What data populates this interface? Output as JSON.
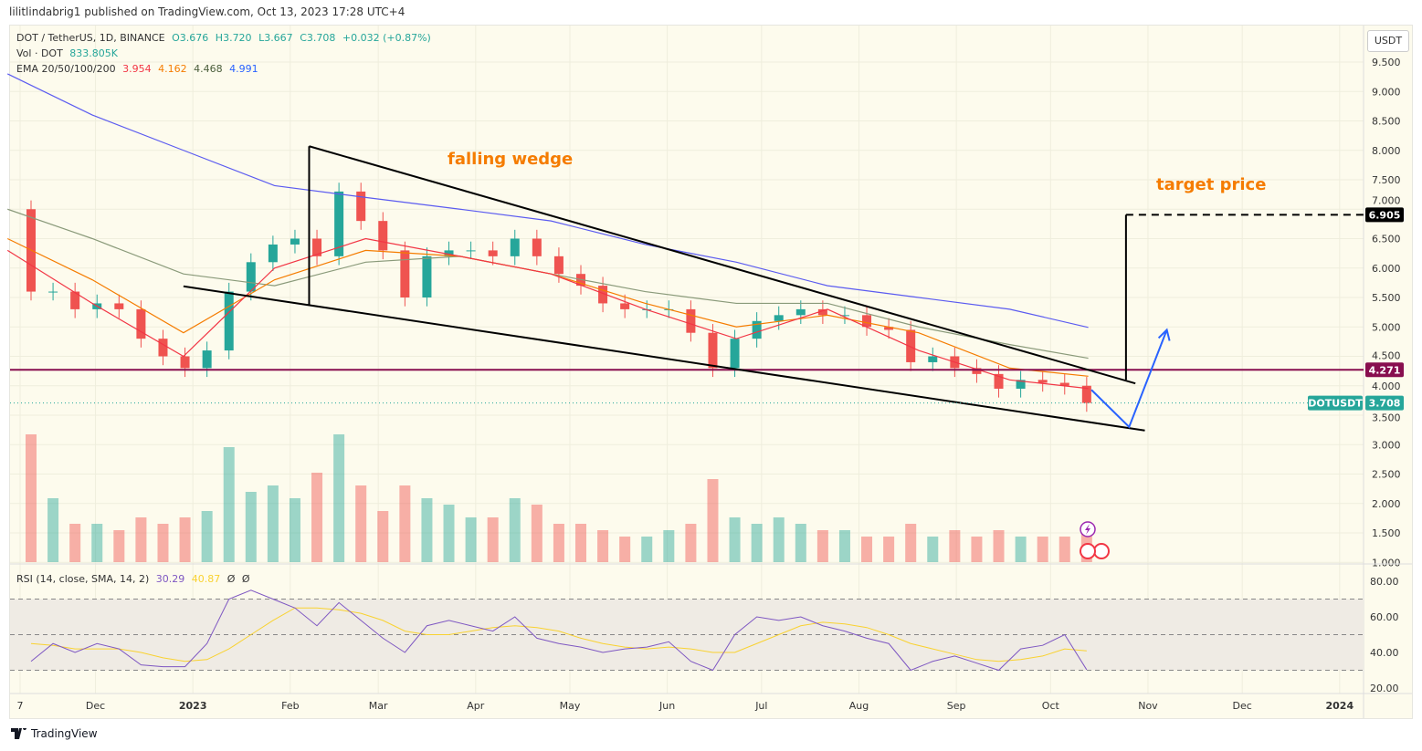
{
  "published": "lilitlindabrig1 published on TradingView.com, Oct 13, 2023 17:28 UTC+4",
  "legend": {
    "symbol": "DOT / TetherUS, 1D, BINANCE",
    "o": "O3.676",
    "h": "H3.720",
    "l": "L3.667",
    "c": "C3.708",
    "change": "+0.032 (+0.87%)",
    "vol_label": "Vol · DOT",
    "vol_value": "833.805K",
    "ema_label": "EMA 20/50/100/200",
    "ema20": "3.954",
    "ema50": "4.162",
    "ema100": "4.468",
    "ema200": "4.991",
    "rsi_label": "RSI (14, close, SMA, 14, 2)",
    "rsi_value": "30.29",
    "rsi_sma_value": "40.87",
    "rsi_n1": "Ø",
    "rsi_n2": "Ø"
  },
  "currency": "USDT",
  "annotations": {
    "wedge": "falling wedge",
    "target": "target price"
  },
  "tags": {
    "target": "6.905",
    "level": "4.271",
    "symbol": "DOTUSDT",
    "last": "3.708"
  },
  "footer_logo": "TradingView",
  "colors": {
    "up": "#26a69a",
    "down": "#ef5350",
    "ema20": "#f23645",
    "ema50": "#f57c00",
    "ema100": "#8a9a7a",
    "ema200": "#5b5bf0",
    "rsi": "#7e57c2",
    "rsi_sma": "#f9d230",
    "level": "#880e4f",
    "background": "#fdfbed"
  },
  "chart_data": [
    {
      "type": "candlestick",
      "price_axis": {
        "ticks": [
          "9.500",
          "9.000",
          "8.500",
          "8.000",
          "7.500",
          "7.000",
          "6.500",
          "6.000",
          "5.500",
          "5.000",
          "4.500",
          "4.000",
          "3.500",
          "3.000",
          "2.500",
          "2.000",
          "1.500",
          "1.000"
        ]
      },
      "time_axis": {
        "ticks": [
          [
            "2022-11-07",
            "7"
          ],
          [
            "2022-12-01",
            "Dec"
          ],
          [
            "2023-01-01",
            "2023"
          ],
          [
            "2023-02-01",
            "Feb"
          ],
          [
            "2023-03-01",
            "Mar"
          ],
          [
            "2023-04-01",
            "Apr"
          ],
          [
            "2023-05-01",
            "May"
          ],
          [
            "2023-06-01",
            "Jun"
          ],
          [
            "2023-07-01",
            "Jul"
          ],
          [
            "2023-08-01",
            "Aug"
          ],
          [
            "2023-09-01",
            "Sep"
          ],
          [
            "2023-10-01",
            "Oct"
          ],
          [
            "2023-11-01",
            "Nov"
          ],
          [
            "2023-12-01",
            "Dec"
          ],
          [
            "2024-01-01",
            "2024"
          ]
        ]
      },
      "weekly_closes": [
        [
          "2022-11-07",
          5.6
        ],
        [
          "2022-11-14",
          5.6
        ],
        [
          "2022-11-21",
          5.3
        ],
        [
          "2022-11-28",
          5.4
        ],
        [
          "2022-12-05",
          5.3
        ],
        [
          "2022-12-12",
          4.8
        ],
        [
          "2022-12-19",
          4.5
        ],
        [
          "2022-12-26",
          4.3
        ],
        [
          "2023-01-02",
          4.6
        ],
        [
          "2023-01-09",
          5.6
        ],
        [
          "2023-01-16",
          6.1
        ],
        [
          "2023-01-23",
          6.4
        ],
        [
          "2023-01-30",
          6.5
        ],
        [
          "2023-02-06",
          6.2
        ],
        [
          "2023-02-13",
          7.3
        ],
        [
          "2023-02-20",
          6.8
        ],
        [
          "2023-02-27",
          6.3
        ],
        [
          "2023-03-06",
          5.5
        ],
        [
          "2023-03-13",
          6.2
        ],
        [
          "2023-03-20",
          6.3
        ],
        [
          "2023-03-27",
          6.3
        ],
        [
          "2023-04-03",
          6.2
        ],
        [
          "2023-04-10",
          6.5
        ],
        [
          "2023-04-17",
          6.2
        ],
        [
          "2023-04-24",
          5.9
        ],
        [
          "2023-05-01",
          5.7
        ],
        [
          "2023-05-08",
          5.4
        ],
        [
          "2023-05-15",
          5.3
        ],
        [
          "2023-05-22",
          5.3
        ],
        [
          "2023-05-29",
          5.3
        ],
        [
          "2023-06-05",
          4.9
        ],
        [
          "2023-06-12",
          4.3
        ],
        [
          "2023-06-19",
          4.8
        ],
        [
          "2023-06-26",
          5.1
        ],
        [
          "2023-07-03",
          5.2
        ],
        [
          "2023-07-10",
          5.3
        ],
        [
          "2023-07-17",
          5.2
        ],
        [
          "2023-07-24",
          5.2
        ],
        [
          "2023-07-31",
          5.0
        ],
        [
          "2023-08-07",
          4.95
        ],
        [
          "2023-08-14",
          4.4
        ],
        [
          "2023-08-21",
          4.5
        ],
        [
          "2023-08-28",
          4.3
        ],
        [
          "2023-09-04",
          4.2
        ],
        [
          "2023-09-11",
          3.95
        ],
        [
          "2023-09-18",
          4.1
        ],
        [
          "2023-09-25",
          4.05
        ],
        [
          "2023-10-02",
          4.0
        ],
        [
          "2023-10-09",
          3.708
        ]
      ],
      "first_open": 7.0,
      "volume_relative": [
        1.0,
        0.5,
        0.3,
        0.3,
        0.25,
        0.35,
        0.3,
        0.35,
        0.4,
        0.9,
        0.55,
        0.6,
        0.5,
        0.7,
        1.0,
        0.6,
        0.4,
        0.6,
        0.5,
        0.45,
        0.35,
        0.35,
        0.5,
        0.45,
        0.3,
        0.3,
        0.25,
        0.2,
        0.2,
        0.25,
        0.3,
        0.65,
        0.35,
        0.3,
        0.35,
        0.3,
        0.25,
        0.25,
        0.2,
        0.2,
        0.3,
        0.2,
        0.25,
        0.2,
        0.25,
        0.2,
        0.2,
        0.2,
        0.25
      ],
      "ema": {
        "ema20": [
          [
            "2022-11-03",
            6.3
          ],
          [
            "2022-11-30",
            5.4
          ],
          [
            "2022-12-29",
            4.5
          ],
          [
            "2023-01-27",
            6.0
          ],
          [
            "2023-02-25",
            6.5
          ],
          [
            "2023-03-27",
            6.2
          ],
          [
            "2023-04-25",
            5.9
          ],
          [
            "2023-05-25",
            5.3
          ],
          [
            "2023-06-23",
            4.8
          ],
          [
            "2023-07-22",
            5.3
          ],
          [
            "2023-08-20",
            4.6
          ],
          [
            "2023-09-18",
            4.1
          ],
          [
            "2023-10-13",
            3.954
          ]
        ],
        "ema50": [
          [
            "2022-11-03",
            6.5
          ],
          [
            "2022-11-30",
            5.8
          ],
          [
            "2022-12-29",
            4.9
          ],
          [
            "2023-01-27",
            5.8
          ],
          [
            "2023-02-25",
            6.3
          ],
          [
            "2023-03-27",
            6.2
          ],
          [
            "2023-04-25",
            5.9
          ],
          [
            "2023-05-25",
            5.4
          ],
          [
            "2023-06-23",
            5.0
          ],
          [
            "2023-07-22",
            5.2
          ],
          [
            "2023-08-20",
            4.9
          ],
          [
            "2023-09-18",
            4.3
          ],
          [
            "2023-10-13",
            4.162
          ]
        ],
        "ema100": [
          [
            "2022-11-03",
            7.0
          ],
          [
            "2022-11-30",
            6.5
          ],
          [
            "2022-12-29",
            5.9
          ],
          [
            "2023-01-27",
            5.7
          ],
          [
            "2023-02-25",
            6.1
          ],
          [
            "2023-03-27",
            6.2
          ],
          [
            "2023-04-25",
            5.9
          ],
          [
            "2023-05-25",
            5.6
          ],
          [
            "2023-06-23",
            5.4
          ],
          [
            "2023-07-22",
            5.4
          ],
          [
            "2023-08-20",
            5.0
          ],
          [
            "2023-09-18",
            4.7
          ],
          [
            "2023-10-13",
            4.468
          ]
        ],
        "ema200": [
          [
            "2022-11-03",
            9.3
          ],
          [
            "2022-11-30",
            8.6
          ],
          [
            "2022-12-29",
            8.0
          ],
          [
            "2023-01-27",
            7.4
          ],
          [
            "2023-02-25",
            7.2
          ],
          [
            "2023-03-27",
            7.0
          ],
          [
            "2023-04-25",
            6.8
          ],
          [
            "2023-05-25",
            6.4
          ],
          [
            "2023-06-23",
            6.1
          ],
          [
            "2023-07-22",
            5.7
          ],
          [
            "2023-08-20",
            5.5
          ],
          [
            "2023-09-18",
            5.3
          ],
          [
            "2023-10-13",
            4.991
          ]
        ]
      },
      "drawings": {
        "wedge_upper": [
          [
            "2023-02-07",
            8.07
          ],
          [
            "2023-10-28",
            4.04
          ]
        ],
        "wedge_lower": [
          [
            "2022-12-29",
            5.69
          ],
          [
            "2023-10-31",
            3.24
          ]
        ],
        "wedge_height": [
          [
            "2023-02-07",
            8.07
          ],
          [
            "2023-02-07",
            5.36
          ]
        ],
        "target_vertical": [
          [
            "2023-10-25",
            4.1
          ],
          [
            "2023-10-25",
            6.905
          ]
        ],
        "target_level": 6.905,
        "horizontal_level": 4.271,
        "projection_arrow": [
          [
            "2023-10-14",
            3.93
          ],
          [
            "2023-10-26",
            3.3
          ],
          [
            "2023-11-07",
            4.95
          ]
        ]
      }
    },
    {
      "type": "line",
      "name": "RSI",
      "ticks": [
        "80.00",
        "60.00",
        "40.00",
        "20.00"
      ],
      "bands": [
        70,
        50,
        30
      ],
      "rsi": [
        35,
        45,
        40,
        45,
        42,
        33,
        32,
        32,
        45,
        70,
        75,
        70,
        65,
        55,
        68,
        58,
        48,
        40,
        55,
        58,
        55,
        52,
        60,
        48,
        45,
        43,
        40,
        42,
        43,
        46,
        35,
        30,
        50,
        60,
        58,
        60,
        55,
        52,
        48,
        45,
        30,
        35,
        38,
        34,
        30,
        42,
        44,
        50,
        30.29
      ],
      "rsi_sma": [
        45,
        44,
        42,
        42,
        42,
        40,
        37,
        35,
        36,
        42,
        50,
        58,
        65,
        65,
        64,
        62,
        58,
        52,
        50,
        50,
        52,
        54,
        55,
        54,
        52,
        48,
        45,
        43,
        42,
        43,
        42,
        40,
        40,
        45,
        50,
        55,
        57,
        56,
        54,
        50,
        45,
        42,
        39,
        36,
        35,
        36,
        38,
        42,
        40.87
      ]
    }
  ]
}
